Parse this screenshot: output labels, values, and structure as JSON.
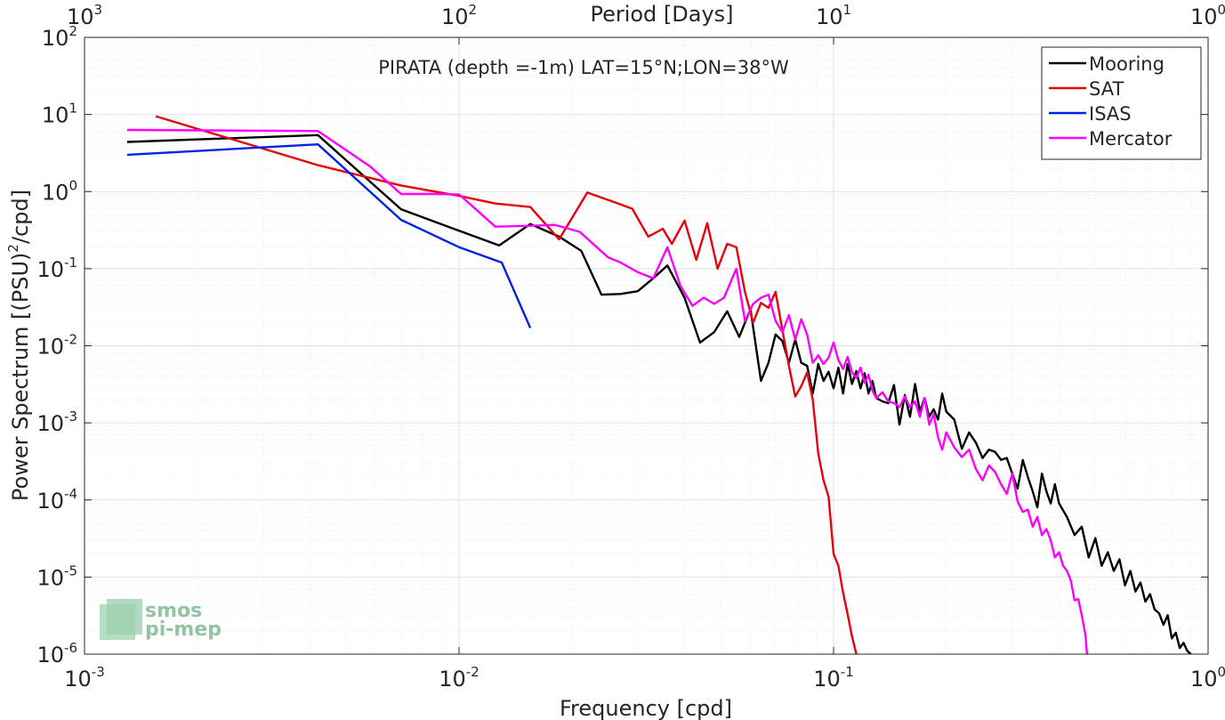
{
  "chart_data": {
    "type": "line",
    "title": "PIRATA (depth =-1m) LAT=15°N;LON=38°W",
    "xlabel": "Frequency [cpd]",
    "ylabel_main": "Power Spectrum [(PSU)",
    "ylabel_sup": "2",
    "ylabel_tail": "/cpd]",
    "top_xlabel": "Period [Days]",
    "xscale": "log",
    "yscale": "log",
    "xlim": [
      0.001,
      1
    ],
    "ylim": [
      1e-06,
      100
    ],
    "grid": true,
    "legend_position": "top-right",
    "xticks": [
      {
        "value": 0.001,
        "base": "10",
        "exp": "-3"
      },
      {
        "value": 0.01,
        "base": "10",
        "exp": "-2"
      },
      {
        "value": 0.1,
        "base": "10",
        "exp": "-1"
      },
      {
        "value": 1,
        "base": "10",
        "exp": "0"
      }
    ],
    "yticks": [
      {
        "value": 1e-06,
        "base": "10",
        "exp": "-6"
      },
      {
        "value": 1e-05,
        "base": "10",
        "exp": "-5"
      },
      {
        "value": 0.0001,
        "base": "10",
        "exp": "-4"
      },
      {
        "value": 0.001,
        "base": "10",
        "exp": "-3"
      },
      {
        "value": 0.01,
        "base": "10",
        "exp": "-2"
      },
      {
        "value": 0.1,
        "base": "10",
        "exp": "-1"
      },
      {
        "value": 1,
        "base": "10",
        "exp": "0"
      },
      {
        "value": 10,
        "base": "10",
        "exp": "1"
      },
      {
        "value": 100,
        "base": "10",
        "exp": "2"
      }
    ],
    "top_xticks": [
      {
        "value": 0.001,
        "base": "10",
        "exp": "3"
      },
      {
        "value": 0.01,
        "base": "10",
        "exp": "2"
      },
      {
        "value": 0.1,
        "base": "10",
        "exp": "1"
      },
      {
        "value": 1,
        "base": "10",
        "exp": "0"
      }
    ],
    "series": [
      {
        "name": "Mooring",
        "color": "#000000",
        "x": [
          0.0013,
          0.0042,
          0.007,
          0.01,
          0.0128,
          0.0155,
          0.0185,
          0.0212,
          0.024,
          0.027,
          0.03,
          0.033,
          0.036,
          0.04,
          0.044,
          0.048,
          0.052,
          0.056,
          0.06,
          0.064,
          0.067,
          0.07,
          0.073,
          0.076,
          0.079,
          0.082,
          0.085,
          0.088,
          0.091,
          0.094,
          0.097,
          0.1,
          0.103,
          0.106,
          0.109,
          0.112,
          0.115,
          0.118,
          0.121,
          0.124,
          0.127,
          0.13,
          0.135,
          0.14,
          0.145,
          0.15,
          0.155,
          0.16,
          0.165,
          0.17,
          0.175,
          0.18,
          0.185,
          0.19,
          0.195,
          0.2,
          0.21,
          0.22,
          0.23,
          0.24,
          0.25,
          0.26,
          0.27,
          0.28,
          0.29,
          0.3,
          0.31,
          0.32,
          0.33,
          0.34,
          0.35,
          0.36,
          0.37,
          0.38,
          0.39,
          0.4,
          0.42,
          0.44,
          0.46,
          0.48,
          0.5,
          0.52,
          0.54,
          0.56,
          0.58,
          0.6,
          0.62,
          0.64,
          0.66,
          0.68,
          0.7,
          0.72,
          0.74,
          0.76,
          0.78,
          0.8,
          0.82,
          0.84,
          0.86,
          0.88,
          0.9
        ],
        "y": [
          4.4,
          5.4,
          0.59,
          0.31,
          0.2,
          0.38,
          0.26,
          0.17,
          0.046,
          0.047,
          0.051,
          0.075,
          0.11,
          0.042,
          0.011,
          0.015,
          0.028,
          0.013,
          0.03,
          0.0035,
          0.006,
          0.014,
          0.0115,
          0.006,
          0.012,
          0.006,
          0.0055,
          0.0024,
          0.0058,
          0.0035,
          0.0046,
          0.0028,
          0.0052,
          0.0024,
          0.0058,
          0.0032,
          0.0047,
          0.0028,
          0.0044,
          0.0024,
          0.0035,
          0.0021,
          0.0019,
          0.0018,
          0.0031,
          0.00095,
          0.0023,
          0.0012,
          0.0032,
          0.0014,
          0.0021,
          0.0012,
          0.0015,
          0.0011,
          0.0024,
          0.0014,
          0.0011,
          0.00046,
          0.00075,
          0.00055,
          0.00035,
          0.00045,
          0.00042,
          0.00033,
          0.00035,
          0.00022,
          0.00014,
          0.00033,
          0.0002,
          0.00013,
          8e-05,
          0.00022,
          0.00013,
          9e-05,
          0.00016,
          9e-05,
          6e-05,
          3.5e-05,
          4.5e-05,
          1.8e-05,
          3.2e-05,
          1.4e-05,
          2.1e-05,
          1.2e-05,
          1.7e-05,
          7.8e-06,
          1.2e-05,
          6.5e-06,
          8.5e-06,
          4.8e-06,
          6e-06,
          3.8e-06,
          3.4e-06,
          2.4e-06,
          3.2e-06,
          1.6e-06,
          1.9e-06,
          1.2e-06,
          1.4e-06,
          1.1e-06,
          1e-06
        ]
      },
      {
        "name": "SAT",
        "color": "#e8000b",
        "x": [
          0.00155,
          0.0042,
          0.007,
          0.01,
          0.0125,
          0.0155,
          0.0185,
          0.022,
          0.025,
          0.029,
          0.032,
          0.035,
          0.037,
          0.04,
          0.043,
          0.046,
          0.049,
          0.052,
          0.055,
          0.058,
          0.061,
          0.064,
          0.067,
          0.07,
          0.073,
          0.076,
          0.079,
          0.082,
          0.085,
          0.088,
          0.091,
          0.094,
          0.097,
          0.1,
          0.103,
          0.106,
          0.109,
          0.112,
          0.115
        ],
        "y": [
          9.5,
          2.2,
          1.2,
          0.88,
          0.7,
          0.63,
          0.24,
          0.97,
          0.78,
          0.6,
          0.26,
          0.33,
          0.21,
          0.42,
          0.13,
          0.39,
          0.1,
          0.21,
          0.19,
          0.05,
          0.02,
          0.036,
          0.031,
          0.05,
          0.016,
          0.0055,
          0.0022,
          0.003,
          0.0045,
          0.002,
          0.0004,
          0.00018,
          0.00011,
          2e-05,
          1.4e-05,
          6.3e-06,
          3.3e-06,
          1.7e-06,
          1e-06
        ]
      },
      {
        "name": "ISAS",
        "color": "#0021e8",
        "x": [
          0.0013,
          0.0042,
          0.007,
          0.01,
          0.013,
          0.0155
        ],
        "y": [
          3.0,
          4.1,
          0.43,
          0.19,
          0.12,
          0.017
        ]
      },
      {
        "name": "Mercator",
        "color": "#ff00ff",
        "x": [
          0.0013,
          0.0042,
          0.0058,
          0.007,
          0.0085,
          0.01,
          0.0125,
          0.0155,
          0.018,
          0.021,
          0.025,
          0.027,
          0.03,
          0.033,
          0.036,
          0.039,
          0.042,
          0.045,
          0.048,
          0.051,
          0.055,
          0.058,
          0.061,
          0.064,
          0.067,
          0.07,
          0.073,
          0.076,
          0.079,
          0.082,
          0.085,
          0.088,
          0.091,
          0.094,
          0.097,
          0.1,
          0.103,
          0.106,
          0.109,
          0.112,
          0.115,
          0.118,
          0.121,
          0.124,
          0.127,
          0.13,
          0.135,
          0.14,
          0.145,
          0.15,
          0.155,
          0.16,
          0.165,
          0.17,
          0.175,
          0.18,
          0.185,
          0.19,
          0.195,
          0.2,
          0.21,
          0.22,
          0.23,
          0.24,
          0.25,
          0.26,
          0.27,
          0.28,
          0.29,
          0.3,
          0.31,
          0.32,
          0.33,
          0.34,
          0.35,
          0.36,
          0.37,
          0.38,
          0.39,
          0.4,
          0.41,
          0.42,
          0.43,
          0.44,
          0.45,
          0.46,
          0.47,
          0.475
        ],
        "y": [
          6.3,
          6.1,
          2.1,
          0.93,
          0.93,
          0.92,
          0.35,
          0.36,
          0.37,
          0.3,
          0.14,
          0.12,
          0.09,
          0.075,
          0.19,
          0.06,
          0.033,
          0.042,
          0.035,
          0.042,
          0.1,
          0.021,
          0.035,
          0.042,
          0.046,
          0.021,
          0.015,
          0.025,
          0.012,
          0.022,
          0.014,
          0.006,
          0.0075,
          0.0058,
          0.007,
          0.011,
          0.0065,
          0.005,
          0.0072,
          0.0045,
          0.0038,
          0.0052,
          0.0033,
          0.0042,
          0.0026,
          0.0021,
          0.0025,
          0.0019,
          0.0018,
          0.0016,
          0.0022,
          0.0016,
          0.0019,
          0.0012,
          0.0021,
          0.00095,
          0.0013,
          0.00065,
          0.00045,
          0.00075,
          0.00048,
          0.00036,
          0.00045,
          0.00025,
          0.00018,
          0.00028,
          0.00023,
          0.00016,
          0.00012,
          0.00022,
          9.5e-05,
          7e-05,
          7.5e-05,
          4.5e-05,
          6e-05,
          3.5e-05,
          4.2e-05,
          3e-05,
          1.8e-05,
          2.1e-05,
          1.4e-05,
          1.2e-05,
          9e-06,
          5e-06,
          5.2e-06,
          3.2e-06,
          1.8e-06,
          1e-06
        ]
      }
    ]
  },
  "logo": {
    "line1": "smos",
    "line2": "pi-mep",
    "color": "#7fba95"
  }
}
